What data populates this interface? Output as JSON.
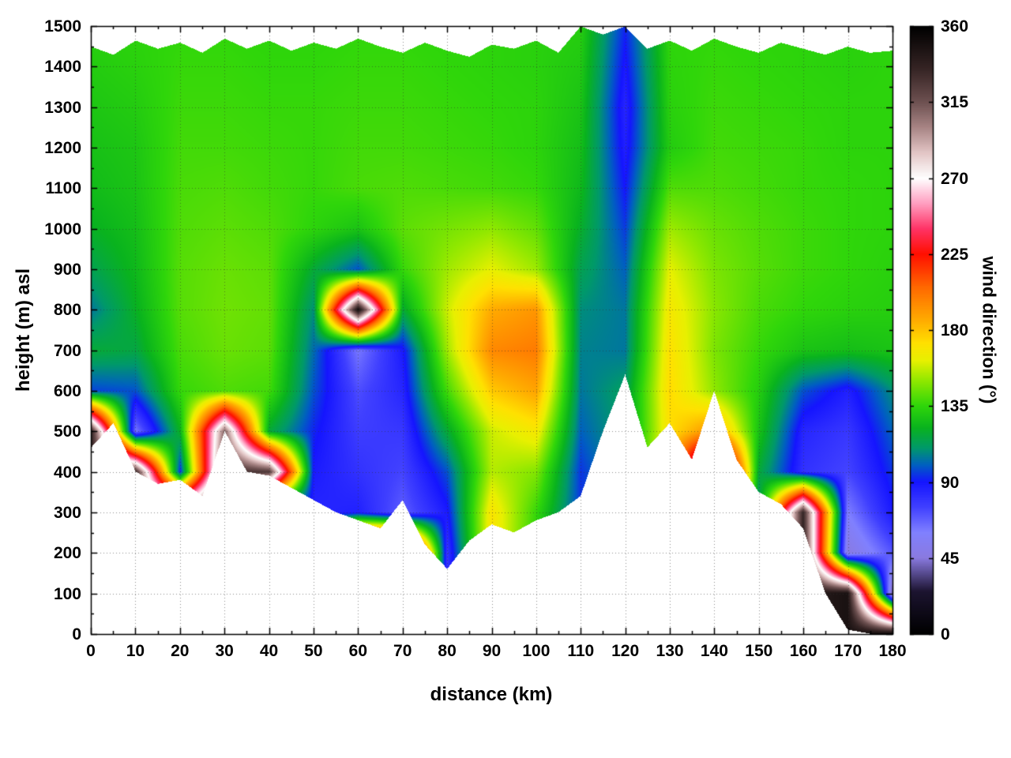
{
  "chart_data": {
    "type": "heatmap",
    "xlabel": "distance (km)",
    "ylabel": "height (m) asl",
    "colorbar_label": "wind direction (°)",
    "x_range": [
      0,
      180
    ],
    "y_range": [
      0,
      1500
    ],
    "c_range": [
      0,
      360
    ],
    "x_ticks": [
      0,
      10,
      20,
      30,
      40,
      50,
      60,
      70,
      80,
      90,
      100,
      110,
      120,
      130,
      140,
      150,
      160,
      170,
      180
    ],
    "y_ticks": [
      0,
      100,
      200,
      300,
      400,
      500,
      600,
      700,
      800,
      900,
      1000,
      1100,
      1200,
      1300,
      1400,
      1500
    ],
    "colorbar_ticks": [
      0,
      45,
      90,
      135,
      180,
      225,
      270,
      315,
      360
    ],
    "grid": true,
    "legend_position": "right-colorbar",
    "x_step_km": 10,
    "y_step_m": 100,
    "terrain_x_step_km": 5,
    "terrain_height_m": [
      460,
      520,
      400,
      370,
      380,
      340,
      500,
      400,
      390,
      360,
      330,
      300,
      280,
      260,
      330,
      220,
      160,
      230,
      270,
      250,
      280,
      300,
      340,
      500,
      640,
      460,
      520,
      430,
      600,
      430,
      350,
      320,
      260,
      100,
      10,
      0,
      0
    ],
    "data_top_m": [
      1450,
      1430,
      1465,
      1445,
      1460,
      1435,
      1470,
      1445,
      1465,
      1440,
      1460,
      1445,
      1470,
      1450,
      1435,
      1460,
      1440,
      1425,
      1455,
      1445,
      1465,
      1435,
      1500,
      1480,
      1500,
      1445,
      1465,
      1440,
      1470,
      1450,
      1435,
      1460,
      1445,
      1430,
      1450,
      1435,
      1440
    ],
    "wind_direction_grid_row_order": "y=1500 (top) down to y=0, columns x=0..180 step 10",
    "wind_direction_grid": [
      [
        133,
        134,
        135,
        135,
        134,
        134,
        135,
        135,
        134,
        134,
        133,
        132,
        92,
        135,
        135,
        134,
        134,
        133,
        134
      ],
      [
        131,
        133,
        136,
        136,
        135,
        135,
        136,
        136,
        135,
        134,
        133,
        130,
        88,
        134,
        136,
        135,
        134,
        133,
        134
      ],
      [
        129,
        131,
        137,
        137,
        136,
        136,
        137,
        137,
        136,
        135,
        134,
        128,
        84,
        133,
        137,
        136,
        135,
        134,
        134
      ],
      [
        127,
        129,
        138,
        138,
        137,
        136,
        138,
        138,
        137,
        136,
        134,
        126,
        86,
        131,
        138,
        137,
        136,
        134,
        134
      ],
      [
        125,
        128,
        139,
        140,
        138,
        136,
        139,
        140,
        139,
        138,
        136,
        124,
        90,
        140,
        140,
        138,
        136,
        135,
        134
      ],
      [
        121,
        126,
        140,
        142,
        140,
        134,
        128,
        142,
        146,
        150,
        143,
        120,
        95,
        152,
        144,
        140,
        137,
        135,
        134
      ],
      [
        114,
        124,
        141,
        144,
        142,
        118,
        98,
        136,
        152,
        162,
        152,
        114,
        100,
        162,
        147,
        141,
        137,
        135,
        133
      ],
      [
        104,
        121,
        141,
        145,
        143,
        108,
        352,
        118,
        158,
        186,
        192,
        108,
        104,
        168,
        149,
        139,
        135,
        133,
        132
      ],
      [
        118,
        116,
        139,
        144,
        142,
        102,
        62,
        88,
        152,
        196,
        200,
        106,
        104,
        172,
        147,
        136,
        128,
        126,
        128
      ],
      [
        96,
        98,
        136,
        140,
        138,
        98,
        72,
        84,
        138,
        178,
        188,
        104,
        112,
        174,
        150,
        132,
        98,
        86,
        108
      ],
      [
        338,
        62,
        122,
        310,
        118,
        92,
        76,
        78,
        118,
        158,
        168,
        100,
        null,
        172,
        195,
        128,
        84,
        78,
        100
      ],
      [
        null,
        332,
        92,
        330,
        325,
        88,
        80,
        74,
        98,
        155,
        148,
        94,
        null,
        178,
        330,
        118,
        80,
        74,
        94
      ],
      [
        null,
        null,
        322,
        345,
        72,
        84,
        86,
        68,
        88,
        170,
        136,
        null,
        null,
        null,
        345,
        108,
        335,
        60,
        88
      ],
      [
        null,
        null,
        null,
        null,
        null,
        null,
        345,
        335,
        78,
        172,
        132,
        null,
        null,
        null,
        null,
        null,
        340,
        46,
        70
      ],
      [
        null,
        null,
        null,
        null,
        null,
        null,
        null,
        null,
        null,
        null,
        null,
        null,
        null,
        null,
        null,
        null,
        null,
        348,
        38
      ],
      [
        null,
        null,
        null,
        null,
        null,
        null,
        null,
        null,
        null,
        null,
        null,
        null,
        null,
        null,
        null,
        null,
        null,
        null,
        352
      ]
    ],
    "colormap_stops": [
      [
        0,
        "#000000"
      ],
      [
        25,
        "#1c1430"
      ],
      [
        45,
        "#8a7ae0"
      ],
      [
        60,
        "#8080ff"
      ],
      [
        75,
        "#4040ff"
      ],
      [
        90,
        "#1515ff"
      ],
      [
        100,
        "#0060c0"
      ],
      [
        110,
        "#00996a"
      ],
      [
        122,
        "#09b31e"
      ],
      [
        135,
        "#2fd60a"
      ],
      [
        150,
        "#90e800"
      ],
      [
        162,
        "#e8f000"
      ],
      [
        172,
        "#ffe100"
      ],
      [
        185,
        "#ffae00"
      ],
      [
        205,
        "#ff6a00"
      ],
      [
        225,
        "#ff0f00"
      ],
      [
        240,
        "#ff3366"
      ],
      [
        255,
        "#ff9ec0"
      ],
      [
        270,
        "#ffffff"
      ],
      [
        285,
        "#e3c6c6"
      ],
      [
        300,
        "#a88585"
      ],
      [
        315,
        "#6e5151"
      ],
      [
        335,
        "#352424"
      ],
      [
        360,
        "#000000"
      ]
    ],
    "frame_color": "#000000",
    "background_color": "#ffffff"
  }
}
